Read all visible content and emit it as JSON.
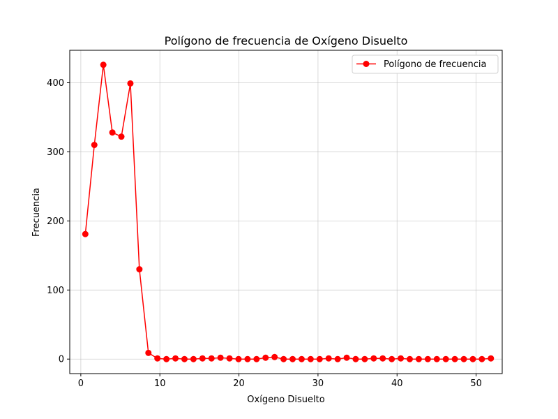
{
  "chart_data": {
    "type": "line",
    "title": "Polígono de frecuencia de Oxígeno Disuelto",
    "xlabel": "Oxígeno Disuelto",
    "ylabel": "Frecuencia",
    "xlim": [
      -1.4,
      53.3
    ],
    "ylim": [
      -21,
      447
    ],
    "xticks": [
      0,
      10,
      20,
      30,
      40,
      50
    ],
    "yticks": [
      0,
      100,
      200,
      300,
      400
    ],
    "grid": true,
    "legend_position": "top-right",
    "series": [
      {
        "name": "Polígono de frecuencia",
        "color": "#ff0000",
        "marker": "circle",
        "x": [
          0.57,
          1.71,
          2.85,
          3.99,
          5.13,
          6.27,
          7.41,
          8.55,
          9.69,
          10.83,
          11.97,
          13.11,
          14.25,
          15.39,
          16.53,
          17.67,
          18.81,
          19.95,
          21.09,
          22.23,
          23.37,
          24.51,
          25.65,
          26.79,
          27.93,
          29.07,
          30.21,
          31.35,
          32.49,
          33.63,
          34.77,
          35.91,
          37.05,
          38.19,
          39.33,
          40.47,
          41.61,
          42.75,
          43.89,
          45.03,
          46.17,
          47.31,
          48.45,
          49.59,
          50.73,
          51.87
        ],
        "y": [
          181,
          310,
          426,
          328,
          322,
          399,
          130,
          9,
          1,
          0,
          1,
          0,
          0,
          1,
          1,
          2,
          1,
          0,
          0,
          0,
          2,
          3,
          0,
          0,
          0,
          0,
          0,
          1,
          0,
          2,
          0,
          0,
          1,
          1,
          0,
          1,
          0,
          0,
          0,
          0,
          0,
          0,
          0,
          0,
          0,
          1
        ]
      }
    ]
  }
}
